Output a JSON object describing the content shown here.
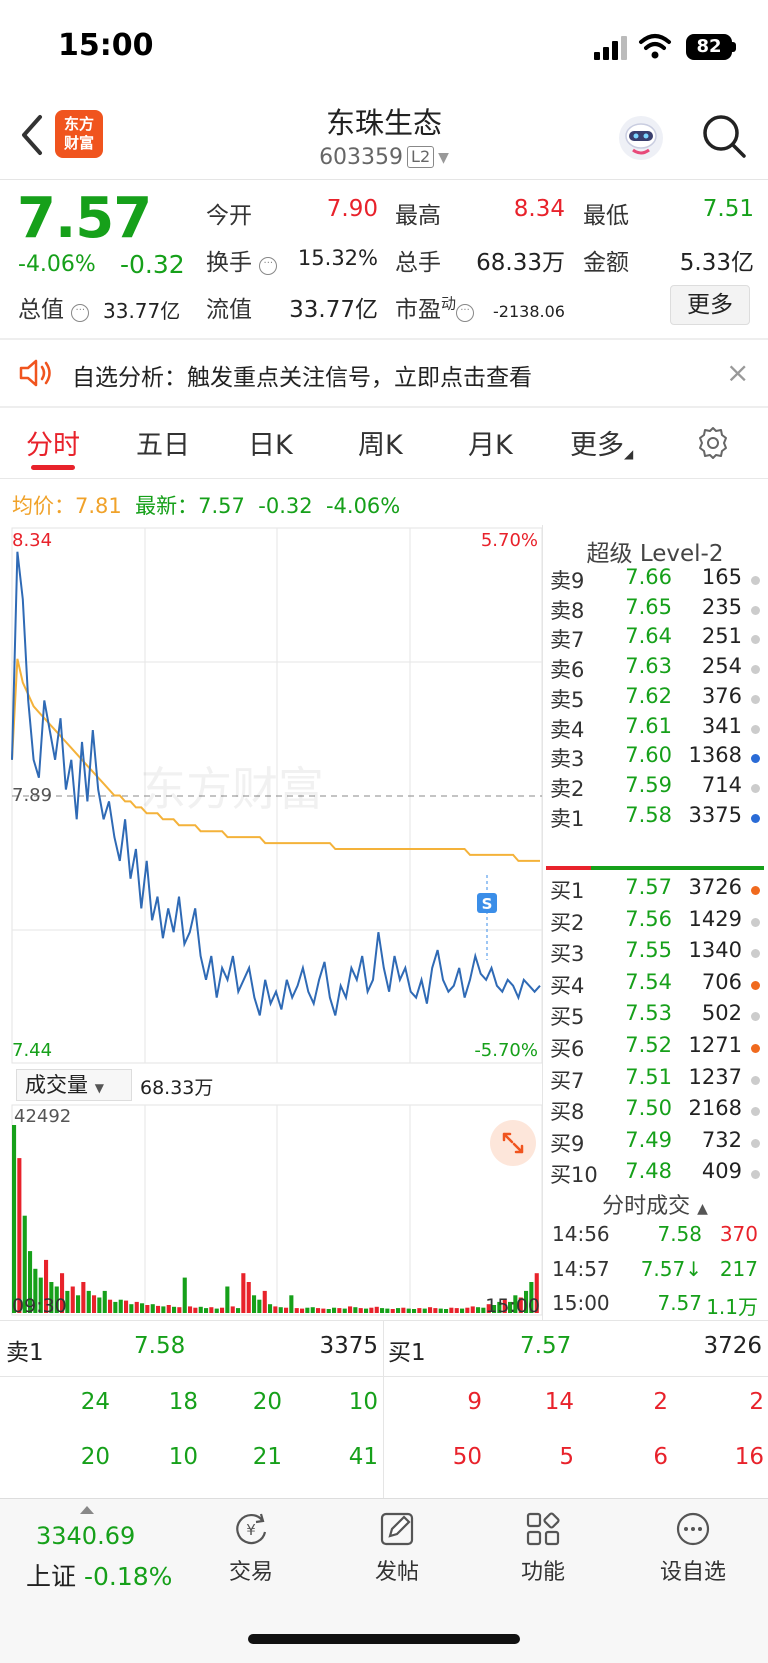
{
  "status_bar": {
    "time": "15:00",
    "battery": "82"
  },
  "header": {
    "logo_line1": "东方",
    "logo_line2": "财富",
    "stock_name": "东珠生态",
    "stock_code": "603359",
    "level_badge": "L2"
  },
  "quote": {
    "price": "7.57",
    "pct_change": "-4.06%",
    "abs_change": "-0.32",
    "open_label": "今开",
    "open": "7.90",
    "high_label": "最高",
    "high": "8.34",
    "low_label": "最低",
    "low": "7.51",
    "turnover_label": "换手",
    "turnover": "15.32%",
    "volume_label": "总手",
    "volume": "68.33万",
    "amount_label": "金额",
    "amount": "5.33亿",
    "total_cap_label": "总值",
    "total_cap": "33.77亿",
    "float_cap_label": "流值",
    "float_cap": "33.77亿",
    "pe_label": "市盈",
    "pe_sup": "动",
    "pe": "-2138.06",
    "more_button": "更多"
  },
  "banner": {
    "text": "自选分析：触发重点关注信号，立即点击查看",
    "close": "×"
  },
  "tabs": [
    {
      "label": "分时"
    },
    {
      "label": "五日"
    },
    {
      "label": "日K"
    },
    {
      "label": "周K"
    },
    {
      "label": "月K"
    },
    {
      "label": "更多"
    }
  ],
  "chart_header": {
    "avg_label": "均价：",
    "avg_value": "7.81",
    "latest_label": "最新：",
    "latest_value": "7.57",
    "latest_change": "-0.32",
    "latest_pct": "-4.06%"
  },
  "chart_data": {
    "type": "line",
    "price_axis": {
      "top": "8.34",
      "bottom": "7.44",
      "ref": "7.89"
    },
    "pct_axis": {
      "top": "5.70%",
      "bottom": "-5.70%"
    },
    "time_axis": [
      "09:30",
      "15:00"
    ],
    "ylim": [
      7.44,
      8.34
    ],
    "series": [
      {
        "values": [
          7.95,
          8.3,
          8.22,
          8.05,
          7.95,
          7.92,
          8.05,
          8.0,
          7.95,
          8.02,
          7.9,
          7.95,
          7.85,
          7.98,
          7.88,
          8.0,
          7.9,
          7.85,
          7.88,
          7.82,
          7.78,
          7.85,
          7.75,
          7.8,
          7.7,
          7.78,
          7.68,
          7.72,
          7.65,
          7.7,
          7.66,
          7.72,
          7.64,
          7.66,
          7.7,
          7.62,
          7.58,
          7.62,
          7.55,
          7.6,
          7.58,
          7.62,
          7.56,
          7.58,
          7.6,
          7.55,
          7.52,
          7.58,
          7.54,
          7.56,
          7.53,
          7.58,
          7.55,
          7.57,
          7.6,
          7.56,
          7.54,
          7.58,
          7.61,
          7.55,
          7.52,
          7.57,
          7.55,
          7.6,
          7.58,
          7.62,
          7.56,
          7.58,
          7.66,
          7.6,
          7.56,
          7.62,
          7.58,
          7.6,
          7.56,
          7.55,
          7.58,
          7.54,
          7.6,
          7.63,
          7.58,
          7.56,
          7.57,
          7.6,
          7.55,
          7.58,
          7.62,
          7.59,
          7.58,
          7.6,
          7.57,
          7.56,
          7.58,
          7.57,
          7.55,
          7.58,
          7.57,
          7.56,
          7.57
        ]
      },
      {
        "values": [
          7.95,
          8.12,
          8.08,
          8.06,
          8.04,
          8.03,
          8.02,
          8.01,
          8.0,
          7.99,
          7.98,
          7.97,
          7.96,
          7.95,
          7.94,
          7.93,
          7.92,
          7.91,
          7.9,
          7.89,
          7.89,
          7.88,
          7.88,
          7.87,
          7.87,
          7.86,
          7.86,
          7.86,
          7.85,
          7.85,
          7.85,
          7.84,
          7.84,
          7.84,
          7.84,
          7.83,
          7.83,
          7.83,
          7.83,
          7.83,
          7.82,
          7.82,
          7.82,
          7.82,
          7.82,
          7.82,
          7.82,
          7.81,
          7.81,
          7.81,
          7.81,
          7.81,
          7.81,
          7.81,
          7.81,
          7.81,
          7.81,
          7.81,
          7.81,
          7.81,
          7.8,
          7.8,
          7.8,
          7.8,
          7.8,
          7.8,
          7.8,
          7.8,
          7.8,
          7.8,
          7.8,
          7.8,
          7.8,
          7.8,
          7.8,
          7.8,
          7.8,
          7.8,
          7.8,
          7.8,
          7.8,
          7.8,
          7.8,
          7.8,
          7.8,
          7.79,
          7.79,
          7.79,
          7.79,
          7.79,
          7.79,
          7.79,
          7.79,
          7.79,
          7.78,
          7.78,
          7.78,
          7.78,
          7.78
        ]
      }
    ],
    "volume": {
      "label": "成交量",
      "total": "68.33万",
      "max": "42492",
      "values": [
        42492,
        35000,
        22000,
        14000,
        10000,
        8000,
        12000,
        7000,
        6000,
        9000,
        5000,
        6000,
        4000,
        7000,
        5000,
        4000,
        3500,
        5000,
        3000,
        2500,
        3000,
        2800,
        2000,
        2500,
        2200,
        1800,
        2000,
        1600,
        1500,
        1800,
        1400,
        1300,
        8000,
        1500,
        1200,
        1400,
        1100,
        1300,
        1000,
        1200,
        6000,
        1500,
        1100,
        9000,
        7000,
        4000,
        3000,
        5000,
        2000,
        1500,
        1300,
        1200,
        4000,
        1100,
        1000,
        1200,
        1300,
        1100,
        1000,
        900,
        1200,
        1100,
        1000,
        1500,
        1300,
        1100,
        1000,
        1200,
        1400,
        1100,
        1000,
        900,
        1100,
        1200,
        1000,
        900,
        1100,
        1000,
        1300,
        1100,
        1000,
        900,
        1200,
        1100,
        1000,
        1200,
        1500,
        1300,
        1200,
        2000,
        1800,
        2500,
        3000,
        2500,
        4000,
        3500,
        5000,
        7000,
        9000
      ]
    },
    "marker": "S"
  },
  "order_book": {
    "title": "超级 Level-2",
    "asks": [
      {
        "label": "卖9",
        "price": "7.66",
        "qty": "165",
        "dot": "gray"
      },
      {
        "label": "卖8",
        "price": "7.65",
        "qty": "235",
        "dot": "gray"
      },
      {
        "label": "卖7",
        "price": "7.64",
        "qty": "251",
        "dot": "gray"
      },
      {
        "label": "卖6",
        "price": "7.63",
        "qty": "254",
        "dot": "gray"
      },
      {
        "label": "卖5",
        "price": "7.62",
        "qty": "376",
        "dot": "gray"
      },
      {
        "label": "卖4",
        "price": "7.61",
        "qty": "341",
        "dot": "gray"
      },
      {
        "label": "卖3",
        "price": "7.60",
        "qty": "1368",
        "dot": "blue"
      },
      {
        "label": "卖2",
        "price": "7.59",
        "qty": "714",
        "dot": "gray"
      },
      {
        "label": "卖1",
        "price": "7.58",
        "qty": "3375",
        "dot": "blue"
      }
    ],
    "bids": [
      {
        "label": "买1",
        "price": "7.57",
        "qty": "3726",
        "dot": "orange"
      },
      {
        "label": "买2",
        "price": "7.56",
        "qty": "1429",
        "dot": "gray"
      },
      {
        "label": "买3",
        "price": "7.55",
        "qty": "1340",
        "dot": "gray"
      },
      {
        "label": "买4",
        "price": "7.54",
        "qty": "706",
        "dot": "orange"
      },
      {
        "label": "买5",
        "price": "7.53",
        "qty": "502",
        "dot": "gray"
      },
      {
        "label": "买6",
        "price": "7.52",
        "qty": "1271",
        "dot": "orange"
      },
      {
        "label": "买7",
        "price": "7.51",
        "qty": "1237",
        "dot": "gray"
      },
      {
        "label": "买8",
        "price": "7.50",
        "qty": "2168",
        "dot": "gray"
      },
      {
        "label": "买9",
        "price": "7.49",
        "qty": "732",
        "dot": "gray"
      },
      {
        "label": "买10",
        "price": "7.48",
        "qty": "409",
        "dot": "gray"
      }
    ]
  },
  "ticks": {
    "title": "分时成交",
    "rows": [
      {
        "time": "14:56",
        "price": "7.58",
        "vol": "370",
        "vol_color": "red"
      },
      {
        "time": "14:57",
        "price": "7.57↓",
        "vol": "217",
        "vol_color": "green"
      },
      {
        "time": "15:00",
        "price": "7.57",
        "vol": "1.1万",
        "vol_color": "green"
      }
    ]
  },
  "level1": {
    "sell_label": "卖1",
    "sell_price": "7.58",
    "sell_qty": "3375",
    "buy_label": "买1",
    "buy_price": "7.57",
    "buy_qty": "3726",
    "sell_queue": [
      [
        "24",
        "18",
        "20",
        "10"
      ],
      [
        "20",
        "10",
        "21",
        "41"
      ]
    ],
    "buy_queue": [
      [
        "9",
        "14",
        "2",
        "2"
      ],
      [
        "50",
        "5",
        "6",
        "16"
      ]
    ]
  },
  "bottom_nav": {
    "index_value": "3340.69",
    "index_name": "上证",
    "index_pct": "-0.18%",
    "items": [
      {
        "label": "交易"
      },
      {
        "label": "发帖"
      },
      {
        "label": "功能"
      },
      {
        "label": "设自选"
      }
    ]
  },
  "colors": {
    "up": "#e8222b",
    "down": "#16a01a",
    "price_line": "#2f6ab5",
    "avg_line": "#f4b23a",
    "accent": "#f0541e"
  }
}
